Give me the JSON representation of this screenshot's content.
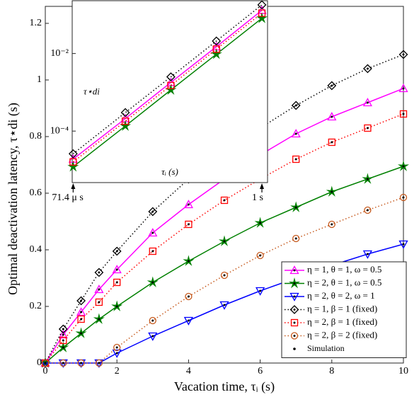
{
  "chart_data": [
    {
      "type": "line",
      "xlabel": "Vacation time, τᵢ (s)",
      "ylabel": "Optimal deactivation latency, τ⋆di (s)",
      "x": [
        0,
        0.5,
        1,
        1.5,
        2,
        3,
        4,
        5,
        6,
        7,
        8,
        9,
        10
      ],
      "xlim": [
        0,
        10
      ],
      "xticks": [
        0,
        2,
        4,
        6,
        8,
        10
      ],
      "ylim": [
        0,
        1.26
      ],
      "yticks": [
        0,
        0.2,
        0.4,
        0.6,
        0.8,
        1,
        1.2
      ],
      "legend": "lower right",
      "series": [
        {
          "name": "η = 1, θ = 1, ω = 0.5",
          "color": "#ff00ff",
          "marker": "triangle-up",
          "dash": "solid",
          "values": [
            0,
            0.1,
            0.18,
            0.26,
            0.33,
            0.46,
            0.56,
            0.65,
            0.735,
            0.81,
            0.87,
            0.92,
            0.97
          ]
        },
        {
          "name": "η = 2, θ = 1, ω = 0.5",
          "color": "#008000",
          "marker": "star",
          "dash": "solid",
          "values": [
            0,
            0.055,
            0.105,
            0.155,
            0.2,
            0.285,
            0.36,
            0.43,
            0.495,
            0.55,
            0.605,
            0.65,
            0.695
          ]
        },
        {
          "name": "η = 2, θ = 2, ω = 1",
          "color": "#0000ff",
          "marker": "triangle-down",
          "dash": "solid",
          "values": [
            0,
            0,
            0,
            0,
            0.035,
            0.095,
            0.15,
            0.205,
            0.255,
            0.3,
            0.345,
            0.385,
            0.42
          ]
        },
        {
          "name": "η = 1, β = 1 (fixed)",
          "color": "#000000",
          "marker": "diamond",
          "dash": "dotted",
          "values": [
            0,
            0.12,
            0.22,
            0.32,
            0.395,
            0.535,
            0.65,
            0.75,
            0.83,
            0.91,
            0.98,
            1.04,
            1.09
          ]
        },
        {
          "name": "η = 2, β = 1 (fixed)",
          "color": "#ff0000",
          "marker": "square",
          "dash": "dotted",
          "values": [
            0,
            0.08,
            0.155,
            0.215,
            0.285,
            0.395,
            0.49,
            0.575,
            0.65,
            0.72,
            0.78,
            0.83,
            0.88
          ]
        },
        {
          "name": "η = 2, β = 2 (fixed)",
          "color": "#c65a1e",
          "marker": "circle",
          "dash": "dotted",
          "values": [
            0,
            0,
            0,
            0,
            0.055,
            0.15,
            0.235,
            0.31,
            0.38,
            0.44,
            0.49,
            0.54,
            0.585
          ]
        }
      ],
      "simulation_label": "Simulation"
    },
    {
      "type": "line",
      "xscale": "log",
      "yscale": "log",
      "xlabel": "τᵢ (s)",
      "ylabel": "τ⋆di",
      "x": [
        7.14e-05,
        0.001,
        0.01,
        0.1,
        1
      ],
      "xlim": [
        6.8e-05,
        1.33
      ],
      "ylim": [
        4.7e-06,
        0.23
      ],
      "yticks": [
        {
          "value": 0.0001,
          "label": "10⁻⁴"
        },
        {
          "value": 0.01,
          "label": "10⁻²"
        }
      ],
      "annotations": [
        "71.4 μ s",
        "1 s"
      ],
      "series": [
        {
          "name": "η = 1, θ = 1, ω = 0.5",
          "color": "#ff00ff",
          "marker": "triangle-up",
          "dash": "solid",
          "values": [
            1.9e-05,
            0.00021,
            0.0018,
            0.015,
            0.13
          ]
        },
        {
          "name": "η = 2, θ = 1, ω = 0.5",
          "color": "#008000",
          "marker": "star",
          "dash": "solid",
          "values": [
            1.2e-05,
            0.000135,
            0.00115,
            0.0096,
            0.081
          ]
        },
        {
          "name": "η = 1, β = 1 (fixed)",
          "color": "#000000",
          "marker": "diamond",
          "dash": "dotted",
          "values": [
            2.6e-05,
            0.0003,
            0.0025,
            0.021,
            0.18
          ]
        },
        {
          "name": "η = 2, β = 1 (fixed)",
          "color": "#ff0000",
          "marker": "square",
          "dash": "dotted",
          "values": [
            1.6e-05,
            0.00018,
            0.0015,
            0.013,
            0.11
          ]
        }
      ]
    }
  ]
}
